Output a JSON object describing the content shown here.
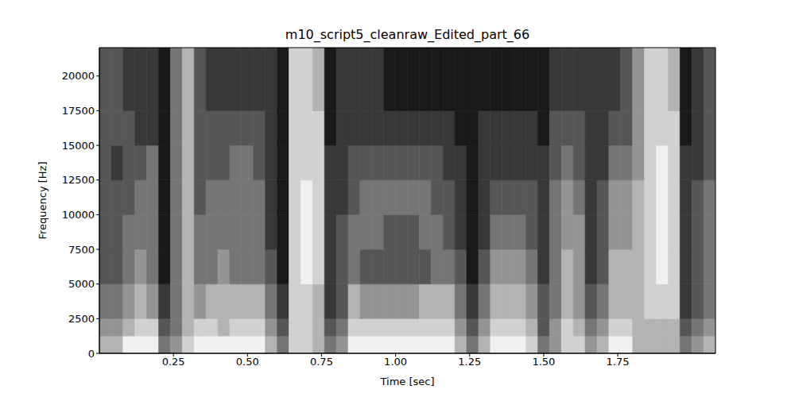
{
  "chart_data": {
    "type": "heatmap",
    "title": "m10_script5_cleanraw_Edited_part_66",
    "x_label": "Time [sec]",
    "y_label": "Frequency [Hz]",
    "xlim": [
      0,
      2.08
    ],
    "ylim": [
      0,
      22050
    ],
    "xticks": [
      0.25,
      {
        "value": 0.5,
        "label": "0.50"
      },
      0.75,
      {
        "value": 1,
        "label": "1.00"
      },
      1.25,
      {
        "value": 1.5,
        "label": "1.50"
      },
      1.75
    ],
    "yticks": [
      0,
      2500,
      5000,
      7500,
      10000,
      12500,
      15000,
      17500,
      20000
    ],
    "grid": false,
    "x_edges": [
      0,
      0.04,
      0.08,
      0.12,
      0.16,
      0.2,
      0.24,
      0.28,
      0.32,
      0.36,
      0.4,
      0.44,
      0.48,
      0.52,
      0.56,
      0.6,
      0.64,
      0.68,
      0.72,
      0.76,
      0.8,
      0.84,
      0.88,
      0.92,
      0.96,
      1,
      1.04,
      1.08,
      1.12,
      1.16,
      1.2,
      1.24,
      1.28,
      1.32,
      1.36,
      1.4,
      1.44,
      1.48,
      1.52,
      1.56,
      1.6,
      1.64,
      1.68,
      1.72,
      1.76,
      1.8,
      1.84,
      1.88,
      1.92,
      1.96,
      2,
      2.04,
      2.08
    ],
    "y_edges": [
      0,
      1250,
      2500,
      5000,
      7500,
      10000,
      12500,
      15000,
      17500,
      22050
    ],
    "cells": [
      [
        6,
        5,
        4,
        3,
        3,
        3,
        3,
        3,
        3
      ],
      [
        6,
        5,
        4,
        3,
        3,
        3,
        2,
        3,
        3
      ],
      [
        8,
        6,
        5,
        4,
        4,
        3,
        3,
        3,
        2
      ],
      [
        8,
        7,
        6,
        5,
        4,
        4,
        3,
        2,
        2
      ],
      [
        8,
        7,
        5,
        4,
        4,
        4,
        4,
        2,
        2
      ],
      [
        4,
        3,
        2,
        1,
        1,
        1,
        1,
        1,
        1
      ],
      [
        5,
        4,
        4,
        4,
        4,
        4,
        4,
        4,
        4
      ],
      [
        7,
        6,
        6,
        6,
        6,
        6,
        6,
        6,
        6
      ],
      [
        8,
        7,
        5,
        4,
        4,
        3,
        3,
        3,
        3
      ],
      [
        8,
        7,
        6,
        4,
        4,
        4,
        3,
        3,
        2
      ],
      [
        8,
        6,
        6,
        5,
        4,
        4,
        3,
        3,
        2
      ],
      [
        8,
        7,
        6,
        4,
        4,
        4,
        4,
        3,
        2
      ],
      [
        8,
        7,
        6,
        4,
        4,
        4,
        4,
        3,
        2
      ],
      [
        8,
        7,
        6,
        4,
        4,
        4,
        3,
        3,
        2
      ],
      [
        6,
        5,
        4,
        3,
        2,
        2,
        2,
        2,
        2
      ],
      [
        4,
        3,
        2,
        1,
        1,
        1,
        1,
        1,
        1
      ],
      [
        7,
        7,
        7,
        7,
        7,
        7,
        7,
        7,
        7
      ],
      [
        7,
        7,
        7,
        8,
        8,
        8,
        7,
        7,
        7
      ],
      [
        6,
        6,
        6,
        7,
        7,
        7,
        7,
        7,
        6
      ],
      [
        4,
        3,
        2,
        2,
        2,
        2,
        2,
        1,
        1
      ],
      [
        5,
        4,
        3,
        3,
        3,
        2,
        2,
        2,
        2
      ],
      [
        8,
        7,
        6,
        4,
        4,
        3,
        3,
        2,
        2
      ],
      [
        8,
        7,
        5,
        3,
        4,
        4,
        3,
        2,
        2
      ],
      [
        8,
        7,
        5,
        3,
        4,
        4,
        3,
        2,
        2
      ],
      [
        8,
        7,
        5,
        3,
        3,
        4,
        3,
        2,
        1
      ],
      [
        8,
        7,
        5,
        3,
        3,
        4,
        3,
        2,
        1
      ],
      [
        8,
        7,
        5,
        3,
        3,
        4,
        3,
        2,
        1
      ],
      [
        8,
        7,
        6,
        3,
        4,
        4,
        3,
        2,
        1
      ],
      [
        8,
        7,
        6,
        4,
        4,
        3,
        3,
        2,
        1
      ],
      [
        8,
        7,
        6,
        4,
        3,
        3,
        2,
        2,
        1
      ],
      [
        6,
        5,
        4,
        3,
        2,
        2,
        2,
        1,
        1
      ],
      [
        4,
        3,
        2,
        1,
        1,
        1,
        1,
        1,
        1
      ],
      [
        6,
        5,
        4,
        3,
        2,
        2,
        2,
        2,
        1
      ],
      [
        8,
        7,
        6,
        5,
        4,
        3,
        2,
        2,
        1
      ],
      [
        8,
        7,
        6,
        5,
        4,
        3,
        2,
        2,
        1
      ],
      [
        8,
        7,
        6,
        5,
        4,
        3,
        2,
        2,
        1
      ],
      [
        7,
        6,
        5,
        4,
        3,
        3,
        2,
        2,
        1
      ],
      [
        4,
        3,
        3,
        2,
        2,
        2,
        2,
        1,
        1
      ],
      [
        5,
        5,
        4,
        4,
        4,
        4,
        3,
        3,
        2
      ],
      [
        7,
        7,
        6,
        6,
        5,
        5,
        4,
        3,
        2
      ],
      [
        7,
        6,
        5,
        5,
        5,
        4,
        3,
        3,
        2
      ],
      [
        5,
        4,
        3,
        2,
        2,
        2,
        2,
        2,
        2
      ],
      [
        6,
        5,
        4,
        3,
        3,
        3,
        2,
        2,
        2
      ],
      [
        8,
        7,
        6,
        6,
        5,
        5,
        4,
        3,
        2
      ],
      [
        8,
        7,
        6,
        6,
        5,
        5,
        4,
        3,
        3
      ],
      [
        6,
        6,
        6,
        6,
        6,
        6,
        5,
        5,
        5
      ],
      [
        6,
        6,
        7,
        7,
        7,
        7,
        7,
        7,
        7
      ],
      [
        6,
        6,
        7,
        8,
        8,
        8,
        8,
        7,
        7
      ],
      [
        6,
        6,
        7,
        7,
        7,
        7,
        7,
        7,
        6
      ],
      [
        4,
        3,
        2,
        2,
        2,
        2,
        2,
        1,
        1
      ],
      [
        5,
        4,
        3,
        3,
        3,
        3,
        2,
        2,
        2
      ],
      [
        6,
        5,
        4,
        4,
        4,
        4,
        3,
        3,
        3
      ]
    ]
  }
}
